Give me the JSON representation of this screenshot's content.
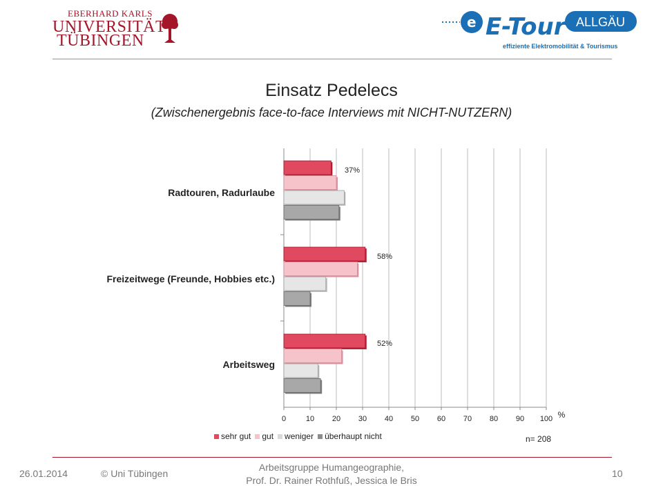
{
  "header": {
    "uni_line1": "EBERHARD KARLS",
    "uni_line2": "UNIVERSITÄT",
    "uni_line3": "TÜBINGEN",
    "etour_brand": "E-Tour",
    "etour_region": "ALLGÄU",
    "etour_tagline": "effiziente Elektromobilität & Tourismus",
    "colors": {
      "university_red": "#a4152a",
      "etour_blue": "#1a6fb5"
    }
  },
  "chart_data": {
    "type": "bar",
    "orientation": "horizontal",
    "title": "Einsatz Pedelecs",
    "subtitle": "(Zwischenergebnis face-to-face Interviews mit NICHT-NUTZERN)",
    "categories": [
      "Radtouren, Radurlaube",
      "Freizeitwege (Freunde, Hobbies etc.)",
      "Arbeitsweg"
    ],
    "series": [
      {
        "name": "sehr gut",
        "color": "#e0495f",
        "values": [
          18,
          31,
          31
        ]
      },
      {
        "name": "gut",
        "color": "#f6c3cb",
        "values": [
          20,
          28,
          22
        ]
      },
      {
        "name": "weniger",
        "color": "#e6e6e6",
        "values": [
          23,
          16,
          13
        ]
      },
      {
        "name": "überhaupt nicht",
        "color": "#a8a8a8",
        "values": [
          21,
          10,
          14
        ]
      }
    ],
    "data_labels": [
      "37%",
      "58%",
      "52%"
    ],
    "x_ticks": [
      "0",
      "10",
      "20",
      "30",
      "40",
      "50",
      "60",
      "70",
      "80",
      "90",
      "100"
    ],
    "xlim": [
      0,
      100
    ],
    "x_unit": "%",
    "grid": true,
    "legend_position": "bottom",
    "note": "n= 208"
  },
  "footer": {
    "date": "26.01.2014",
    "copyright": "© Uni Tübingen",
    "group_line1": "Arbeitsgruppe Humangeographie,",
    "group_line2": "Prof. Dr. Rainer Rothfuß, Jessica le Bris",
    "page": "10"
  }
}
